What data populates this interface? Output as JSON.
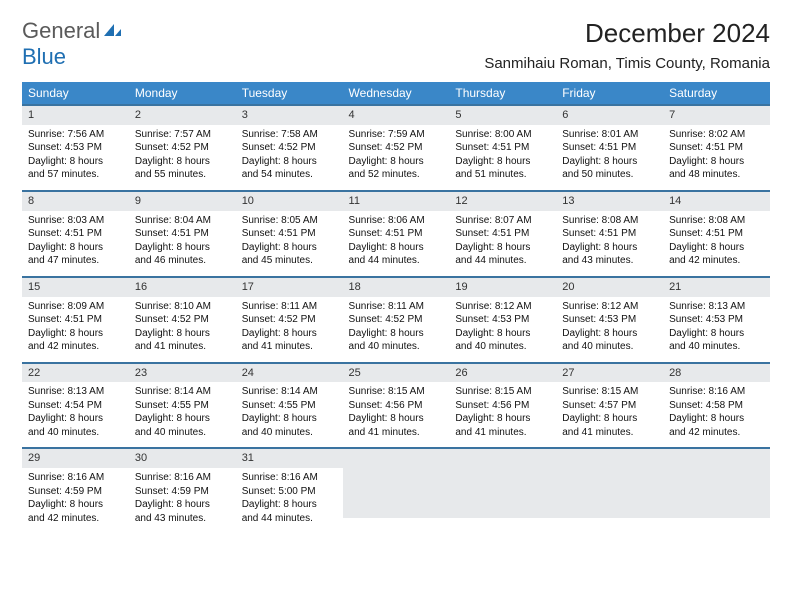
{
  "brand": {
    "part1": "General",
    "part2": "Blue"
  },
  "title": "December 2024",
  "location": "Sanmihaiu Roman, Timis County, Romania",
  "day_headers": [
    "Sunday",
    "Monday",
    "Tuesday",
    "Wednesday",
    "Thursday",
    "Friday",
    "Saturday"
  ],
  "colors": {
    "header_bg": "#3a87c8",
    "row_border": "#3a73a0",
    "daynum_bg": "#e7e9eb",
    "brand_gray": "#5a5a5a",
    "brand_blue": "#1f6fb2"
  },
  "weeks": [
    [
      {
        "n": "1",
        "sr": "Sunrise: 7:56 AM",
        "ss": "Sunset: 4:53 PM",
        "dl1": "Daylight: 8 hours",
        "dl2": "and 57 minutes."
      },
      {
        "n": "2",
        "sr": "Sunrise: 7:57 AM",
        "ss": "Sunset: 4:52 PM",
        "dl1": "Daylight: 8 hours",
        "dl2": "and 55 minutes."
      },
      {
        "n": "3",
        "sr": "Sunrise: 7:58 AM",
        "ss": "Sunset: 4:52 PM",
        "dl1": "Daylight: 8 hours",
        "dl2": "and 54 minutes."
      },
      {
        "n": "4",
        "sr": "Sunrise: 7:59 AM",
        "ss": "Sunset: 4:52 PM",
        "dl1": "Daylight: 8 hours",
        "dl2": "and 52 minutes."
      },
      {
        "n": "5",
        "sr": "Sunrise: 8:00 AM",
        "ss": "Sunset: 4:51 PM",
        "dl1": "Daylight: 8 hours",
        "dl2": "and 51 minutes."
      },
      {
        "n": "6",
        "sr": "Sunrise: 8:01 AM",
        "ss": "Sunset: 4:51 PM",
        "dl1": "Daylight: 8 hours",
        "dl2": "and 50 minutes."
      },
      {
        "n": "7",
        "sr": "Sunrise: 8:02 AM",
        "ss": "Sunset: 4:51 PM",
        "dl1": "Daylight: 8 hours",
        "dl2": "and 48 minutes."
      }
    ],
    [
      {
        "n": "8",
        "sr": "Sunrise: 8:03 AM",
        "ss": "Sunset: 4:51 PM",
        "dl1": "Daylight: 8 hours",
        "dl2": "and 47 minutes."
      },
      {
        "n": "9",
        "sr": "Sunrise: 8:04 AM",
        "ss": "Sunset: 4:51 PM",
        "dl1": "Daylight: 8 hours",
        "dl2": "and 46 minutes."
      },
      {
        "n": "10",
        "sr": "Sunrise: 8:05 AM",
        "ss": "Sunset: 4:51 PM",
        "dl1": "Daylight: 8 hours",
        "dl2": "and 45 minutes."
      },
      {
        "n": "11",
        "sr": "Sunrise: 8:06 AM",
        "ss": "Sunset: 4:51 PM",
        "dl1": "Daylight: 8 hours",
        "dl2": "and 44 minutes."
      },
      {
        "n": "12",
        "sr": "Sunrise: 8:07 AM",
        "ss": "Sunset: 4:51 PM",
        "dl1": "Daylight: 8 hours",
        "dl2": "and 44 minutes."
      },
      {
        "n": "13",
        "sr": "Sunrise: 8:08 AM",
        "ss": "Sunset: 4:51 PM",
        "dl1": "Daylight: 8 hours",
        "dl2": "and 43 minutes."
      },
      {
        "n": "14",
        "sr": "Sunrise: 8:08 AM",
        "ss": "Sunset: 4:51 PM",
        "dl1": "Daylight: 8 hours",
        "dl2": "and 42 minutes."
      }
    ],
    [
      {
        "n": "15",
        "sr": "Sunrise: 8:09 AM",
        "ss": "Sunset: 4:51 PM",
        "dl1": "Daylight: 8 hours",
        "dl2": "and 42 minutes."
      },
      {
        "n": "16",
        "sr": "Sunrise: 8:10 AM",
        "ss": "Sunset: 4:52 PM",
        "dl1": "Daylight: 8 hours",
        "dl2": "and 41 minutes."
      },
      {
        "n": "17",
        "sr": "Sunrise: 8:11 AM",
        "ss": "Sunset: 4:52 PM",
        "dl1": "Daylight: 8 hours",
        "dl2": "and 41 minutes."
      },
      {
        "n": "18",
        "sr": "Sunrise: 8:11 AM",
        "ss": "Sunset: 4:52 PM",
        "dl1": "Daylight: 8 hours",
        "dl2": "and 40 minutes."
      },
      {
        "n": "19",
        "sr": "Sunrise: 8:12 AM",
        "ss": "Sunset: 4:53 PM",
        "dl1": "Daylight: 8 hours",
        "dl2": "and 40 minutes."
      },
      {
        "n": "20",
        "sr": "Sunrise: 8:12 AM",
        "ss": "Sunset: 4:53 PM",
        "dl1": "Daylight: 8 hours",
        "dl2": "and 40 minutes."
      },
      {
        "n": "21",
        "sr": "Sunrise: 8:13 AM",
        "ss": "Sunset: 4:53 PM",
        "dl1": "Daylight: 8 hours",
        "dl2": "and 40 minutes."
      }
    ],
    [
      {
        "n": "22",
        "sr": "Sunrise: 8:13 AM",
        "ss": "Sunset: 4:54 PM",
        "dl1": "Daylight: 8 hours",
        "dl2": "and 40 minutes."
      },
      {
        "n": "23",
        "sr": "Sunrise: 8:14 AM",
        "ss": "Sunset: 4:55 PM",
        "dl1": "Daylight: 8 hours",
        "dl2": "and 40 minutes."
      },
      {
        "n": "24",
        "sr": "Sunrise: 8:14 AM",
        "ss": "Sunset: 4:55 PM",
        "dl1": "Daylight: 8 hours",
        "dl2": "and 40 minutes."
      },
      {
        "n": "25",
        "sr": "Sunrise: 8:15 AM",
        "ss": "Sunset: 4:56 PM",
        "dl1": "Daylight: 8 hours",
        "dl2": "and 41 minutes."
      },
      {
        "n": "26",
        "sr": "Sunrise: 8:15 AM",
        "ss": "Sunset: 4:56 PM",
        "dl1": "Daylight: 8 hours",
        "dl2": "and 41 minutes."
      },
      {
        "n": "27",
        "sr": "Sunrise: 8:15 AM",
        "ss": "Sunset: 4:57 PM",
        "dl1": "Daylight: 8 hours",
        "dl2": "and 41 minutes."
      },
      {
        "n": "28",
        "sr": "Sunrise: 8:16 AM",
        "ss": "Sunset: 4:58 PM",
        "dl1": "Daylight: 8 hours",
        "dl2": "and 42 minutes."
      }
    ],
    [
      {
        "n": "29",
        "sr": "Sunrise: 8:16 AM",
        "ss": "Sunset: 4:59 PM",
        "dl1": "Daylight: 8 hours",
        "dl2": "and 42 minutes."
      },
      {
        "n": "30",
        "sr": "Sunrise: 8:16 AM",
        "ss": "Sunset: 4:59 PM",
        "dl1": "Daylight: 8 hours",
        "dl2": "and 43 minutes."
      },
      {
        "n": "31",
        "sr": "Sunrise: 8:16 AM",
        "ss": "Sunset: 5:00 PM",
        "dl1": "Daylight: 8 hours",
        "dl2": "and 44 minutes."
      },
      {
        "empty": true
      },
      {
        "empty": true
      },
      {
        "empty": true
      },
      {
        "empty": true
      }
    ]
  ]
}
